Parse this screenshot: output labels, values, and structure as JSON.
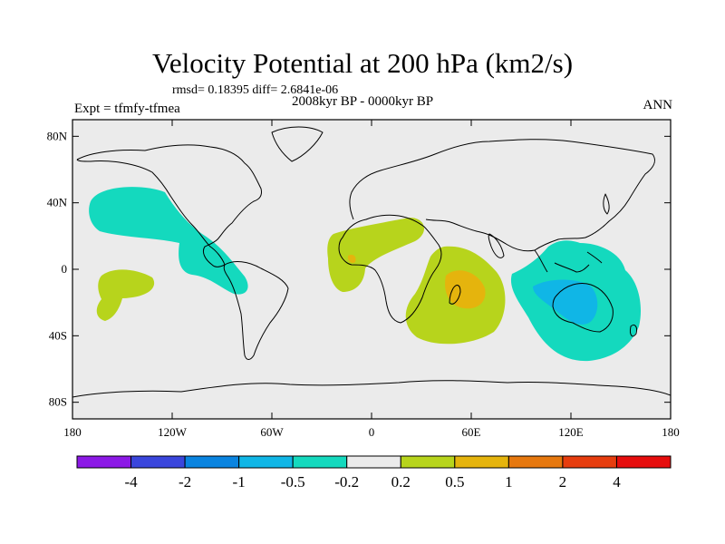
{
  "title": "Velocity Potential at 200 hPa (km2/s)",
  "stats": "rmsd= 0.18395 diff= 2.6841e-06",
  "experiment": "Expt = tfmfy-tfmea",
  "period": "2008kyr BP - 0000kyr BP",
  "season": "ANN",
  "chart_data": {
    "type": "contour-map",
    "projection": "cylindrical equidistant",
    "x_range": [
      -180,
      180
    ],
    "y_range": [
      -90,
      90
    ],
    "x_ticks": [
      {
        "value": -180,
        "label": "180"
      },
      {
        "value": -120,
        "label": "120W"
      },
      {
        "value": -60,
        "label": "60W"
      },
      {
        "value": 0,
        "label": "0"
      },
      {
        "value": 60,
        "label": "60E"
      },
      {
        "value": 120,
        "label": "120E"
      },
      {
        "value": 180,
        "label": "180"
      }
    ],
    "y_ticks": [
      {
        "value": 80,
        "label": "80N"
      },
      {
        "value": 40,
        "label": "40N"
      },
      {
        "value": 0,
        "label": "0"
      },
      {
        "value": -40,
        "label": "40S"
      },
      {
        "value": -80,
        "label": "80S"
      }
    ],
    "levels": [
      "-4",
      "-2",
      "-1",
      "-0.5",
      "-0.2",
      "0.2",
      "0.5",
      "1",
      "2",
      "4"
    ],
    "level_colors": [
      "#8c19e6",
      "#3a46dc",
      "#0a84e0",
      "#10b6e6",
      "#14d9be",
      "#ebebeb",
      "#b7d41c",
      "#e5b40d",
      "#e6780e",
      "#e63d0e",
      "#e60d0d"
    ],
    "anomaly_regions": [
      {
        "name": "NE Pacific to Central America",
        "bin": "-0.5 to -0.2",
        "lon_range": [
          -175,
          -75
        ],
        "lat_range": [
          -15,
          45
        ]
      },
      {
        "name": "Tropical Atlantic / West Africa",
        "bin": "0.2 to 0.5",
        "lon_range": [
          -25,
          33
        ],
        "lat_range": [
          -15,
          30
        ]
      },
      {
        "name": "Southern Africa / SW Indian Ocean",
        "bin": "0.2 to 0.5",
        "lon_range": [
          20,
          81
        ],
        "lat_range": [
          -45,
          13
        ]
      },
      {
        "name": "Madagascar core",
        "bin": "0.5 to 1",
        "lon_range": [
          45,
          70
        ],
        "lat_range": [
          -25,
          -5
        ]
      },
      {
        "name": "Maritime Continent / Australia",
        "bin": "-0.5 to -0.2",
        "lon_range": [
          90,
          175
        ],
        "lat_range": [
          -55,
          15
        ]
      },
      {
        "name": "Australia core",
        "bin": "-1 to -0.5",
        "lon_range": [
          100,
          145
        ],
        "lat_range": [
          -30,
          -10
        ]
      },
      {
        "name": "Central South Pacific",
        "bin": "0.2 to 0.5",
        "lon_range": [
          -168,
          -140
        ],
        "lat_range": [
          -30,
          -5
        ]
      }
    ]
  }
}
